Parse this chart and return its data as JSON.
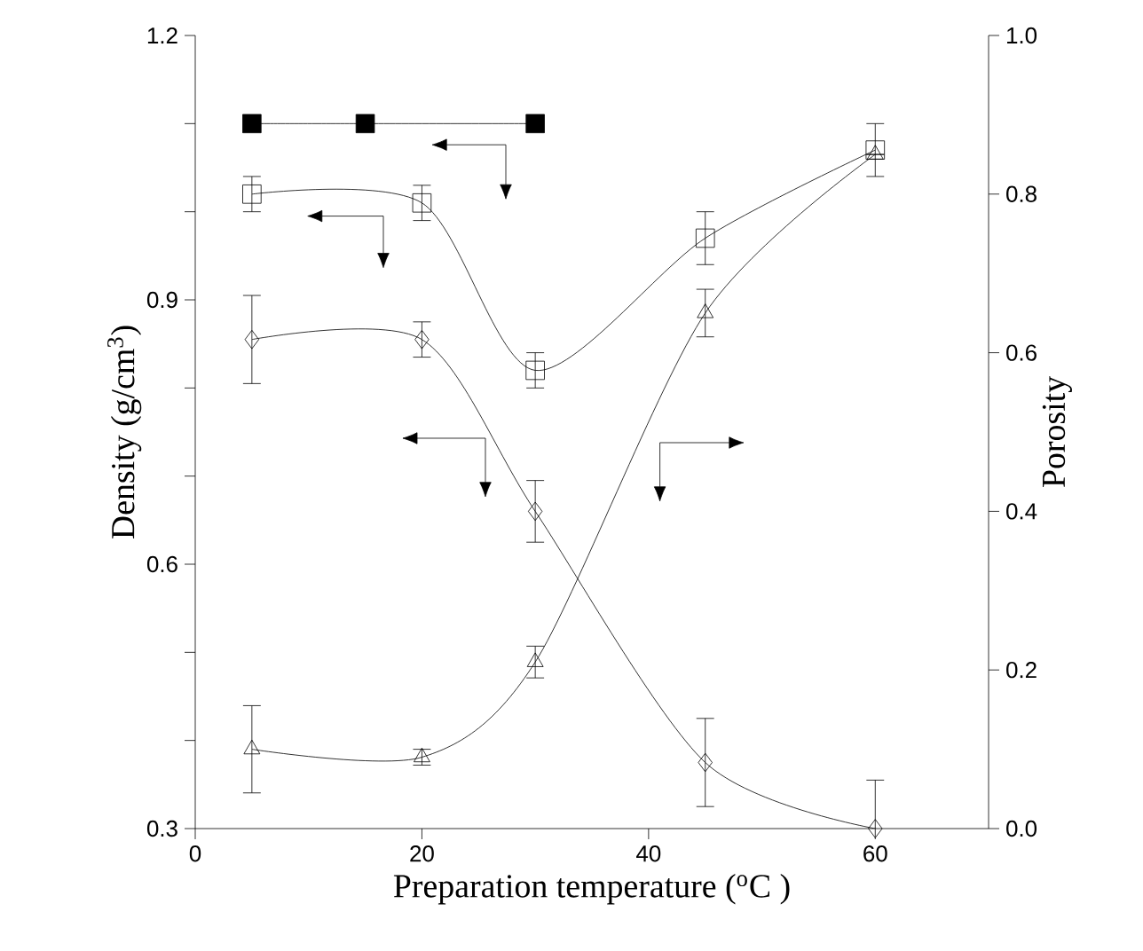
{
  "chart_data": {
    "type": "line",
    "xlabel": "Preparation temperature ($^{o}$C )",
    "ylabel": "Density (g/cm$^{3}$)",
    "y2label": "Porosity",
    "xlim": [
      0,
      70
    ],
    "xticks": [
      0,
      20,
      40,
      60
    ],
    "ylim": [
      0.3,
      1.2
    ],
    "yticks": [
      0.3,
      0.6,
      0.9,
      1.2
    ],
    "y2lim": [
      0,
      1
    ],
    "y2ticks": [
      {
        "value": 0,
        "label": "0.0"
      },
      0.2,
      0.4,
      0.6,
      0.8,
      {
        "value": 1,
        "label": "1.0"
      }
    ],
    "line_style": "solid",
    "series": [
      {
        "color": "#000000",
        "colors": [
          "#000000",
          "#000000",
          "#000000"
        ],
        "marker": "square",
        "x": [
          5,
          15,
          30
        ],
        "values": [
          1.1,
          1.1,
          1.1
        ]
      },
      {
        "color": "#000000",
        "marker": "square",
        "x": [
          5,
          20,
          30,
          45,
          60
        ],
        "values": [
          1.02,
          1.01,
          0.82,
          0.97,
          1.07
        ],
        "errors": [
          0.02,
          0.02,
          0.02,
          0.03,
          0.03
        ]
      },
      {
        "color": "#000000",
        "marker": "diamond",
        "x": [
          5,
          20,
          30,
          45,
          60
        ],
        "values": [
          0.855,
          0.855,
          0.66,
          0.375,
          0.3
        ],
        "errors": [
          0.05,
          0.02,
          0.035,
          0.05,
          0.055
        ]
      },
      {
        "color": "#000000",
        "marker": "triangle",
        "axis": "y2",
        "x": [
          5,
          20,
          30,
          45,
          60
        ],
        "values": [
          0.1,
          0.09,
          0.21,
          0.65,
          0.85
        ],
        "errors": [
          0.055,
          0.01,
          0.02,
          0.03,
          null
        ]
      }
    ]
  }
}
